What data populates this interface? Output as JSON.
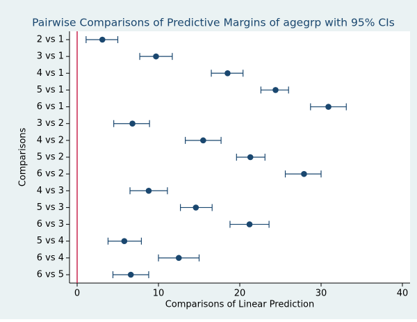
{
  "chart_data": {
    "type": "dot-ci",
    "title": "Pairwise Comparisons of Predictive Margins of agegrp with 95% CIs",
    "x_label": "Comparisons of Linear Prediction",
    "y_label": "Comparisons",
    "categories": [
      "2 vs 1",
      "3 vs 1",
      "4 vs 1",
      "5 vs 1",
      "6 vs 1",
      "3 vs 2",
      "4 vs 2",
      "5 vs 2",
      "6 vs 2",
      "4 vs 3",
      "5 vs 3",
      "6 vs 3",
      "5 vs 4",
      "6 vs 4",
      "6 vs 5"
    ],
    "values": [
      3.1,
      9.7,
      18.5,
      24.4,
      30.9,
      6.8,
      15.5,
      21.3,
      27.9,
      8.8,
      14.6,
      21.2,
      5.8,
      12.5,
      6.6
    ],
    "lower": [
      1.1,
      7.7,
      16.5,
      22.6,
      28.7,
      4.5,
      13.3,
      19.6,
      25.6,
      6.5,
      12.7,
      18.8,
      3.8,
      10.0,
      4.4
    ],
    "upper": [
      5.0,
      11.7,
      20.4,
      26.0,
      33.1,
      8.9,
      17.7,
      23.1,
      30.0,
      11.1,
      16.6,
      23.6,
      7.9,
      15.0,
      8.8
    ],
    "color": "#1a476f",
    "xline": 0,
    "xline_color": "#c10534",
    "xlim": [
      0,
      40
    ],
    "xticks": [
      0,
      10,
      20,
      30,
      40
    ],
    "grid": false
  }
}
